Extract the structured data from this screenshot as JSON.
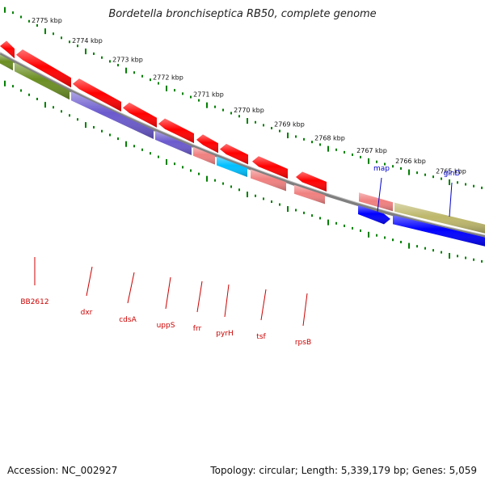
{
  "title": "Bordetella bronchiseptica RB50, complete genome",
  "footer": {
    "accession": "Accession: NC_002927",
    "summary": "Topology: circular; Length: 5,339,179 bp; Genes: 5,059"
  },
  "colors": {
    "red_gene": "#ff0000",
    "pink_gene": "#f08080",
    "olive_gene": "#6b8e23",
    "khaki_gene": "#bdb76b",
    "slate_gene": "#6a5acd",
    "cyan_gene": "#00bfff",
    "blue_gene": "#0000ff",
    "backbone": "#7f7f7f",
    "tick": "#008000",
    "label_red": "#cc0000",
    "label_blue": "#0000cc"
  },
  "scale_labels": [
    "2775 kbp",
    "2774 kbp",
    "2773 kbp",
    "2772 kbp",
    "2771 kbp",
    "2770 kbp",
    "2769 kbp",
    "2768 kbp",
    "2767 kbp",
    "2766 kbp",
    "2765 kbp"
  ],
  "gene_labels_below": [
    "BB2612",
    "dxr",
    "cdsA",
    "uppS",
    "frr",
    "pyrH",
    "tsf",
    "rpsB"
  ],
  "gene_labels_above": [
    "map",
    "glnD"
  ]
}
